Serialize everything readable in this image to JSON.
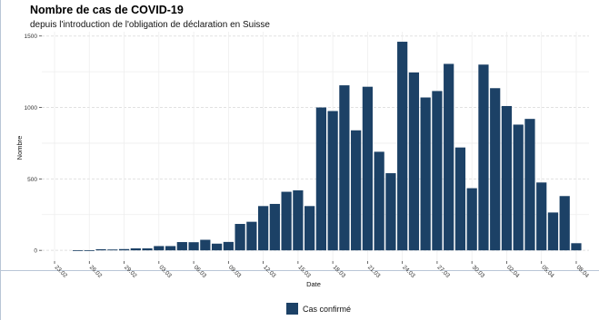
{
  "chart_data": {
    "type": "bar",
    "title": "Nombre de cas de COVID-19",
    "subtitle": "depuis l'introduction de l'obligation de déclaration en Suisse",
    "xlabel": "Date",
    "ylabel": "Nombre",
    "ylim": [
      -75,
      1530
    ],
    "yticks": [
      0,
      500,
      1000,
      1500
    ],
    "xtick_labels": [
      "23.02",
      "26.02",
      "29.02",
      "03.03",
      "06.03",
      "09.03",
      "12.03",
      "15.03",
      "18.03",
      "21.03",
      "24.03",
      "27.03",
      "30.03",
      "02.04",
      "05.04",
      "08.04"
    ],
    "xtick_every": 3,
    "categories": [
      "23.02",
      "24.02",
      "25.02",
      "26.02",
      "27.02",
      "28.02",
      "29.02",
      "01.03",
      "02.03",
      "03.03",
      "04.03",
      "05.03",
      "06.03",
      "07.03",
      "08.03",
      "09.03",
      "10.03",
      "11.03",
      "12.03",
      "13.03",
      "14.03",
      "15.03",
      "16.03",
      "17.03",
      "18.03",
      "19.03",
      "20.03",
      "21.03",
      "22.03",
      "23.03",
      "24.03",
      "25.03",
      "26.03",
      "27.03",
      "28.03",
      "29.03",
      "30.03",
      "31.03",
      "01.04",
      "02.04",
      "03.04",
      "04.04",
      "05.04",
      "06.04",
      "07.04",
      "08.04"
    ],
    "series": [
      {
        "name": "Cas confirmé",
        "values": [
          0,
          0,
          1,
          1,
          8,
          6,
          9,
          14,
          14,
          30,
          30,
          58,
          57,
          74,
          47,
          59,
          185,
          200,
          310,
          325,
          410,
          420,
          310,
          1000,
          975,
          1155,
          840,
          1145,
          690,
          540,
          1460,
          1245,
          1070,
          1115,
          1305,
          720,
          435,
          1300,
          1135,
          1010,
          880,
          920,
          475,
          265,
          380,
          50
        ]
      }
    ],
    "colors": {
      "bar": "#1c4166",
      "grid": "#e1e1e1",
      "axis": "#444444"
    },
    "grid": true,
    "legend_position": "bottom"
  }
}
